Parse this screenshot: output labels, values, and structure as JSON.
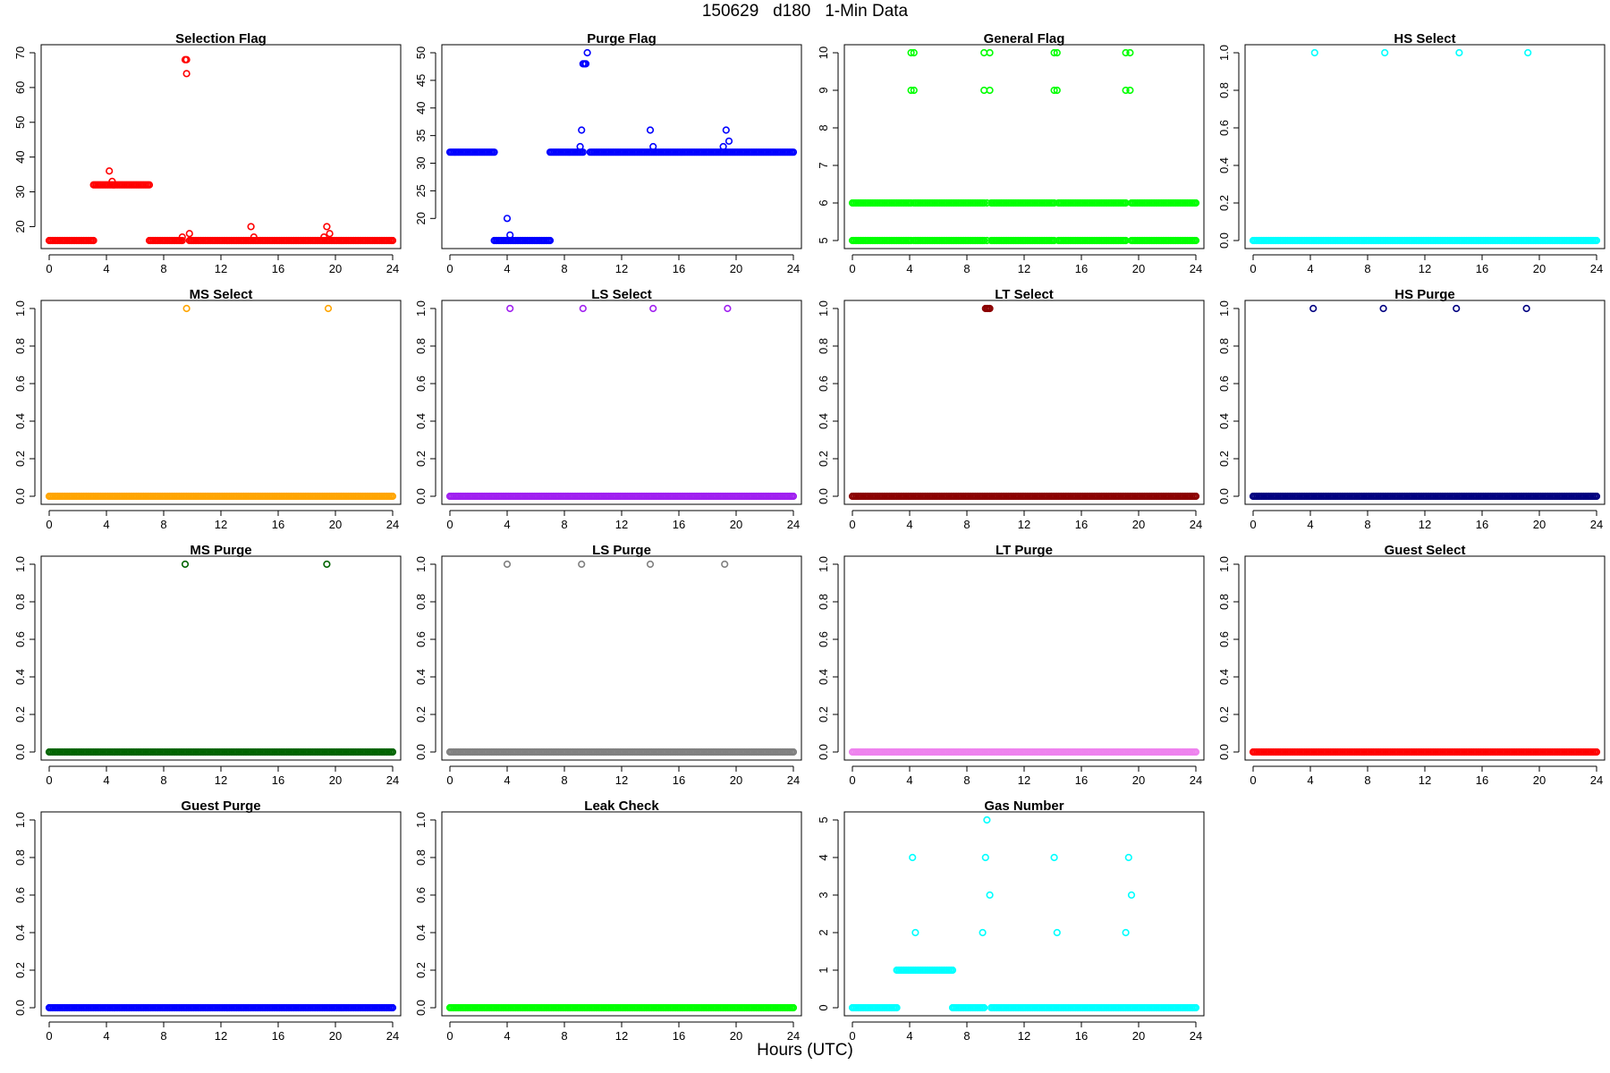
{
  "page": {
    "title": "150629   d180   1-Min Data",
    "xlabel": "Hours (UTC)"
  },
  "chart_data": [
    {
      "type": "scatter",
      "title": "Selection Flag",
      "color": "#ff0000",
      "xlim": [
        0,
        24
      ],
      "xticks": [
        0,
        4,
        8,
        12,
        16,
        20,
        24
      ],
      "ylim": [
        16,
        70
      ],
      "yticks": [
        20,
        30,
        40,
        50,
        60,
        70
      ],
      "segments": [
        {
          "x0": 0,
          "x1": 3.1,
          "y": 16
        },
        {
          "x0": 3.1,
          "x1": 7.0,
          "y": 32
        },
        {
          "x0": 7.0,
          "x1": 9.3,
          "y": 16
        },
        {
          "x0": 9.8,
          "x1": 24,
          "y": 16
        }
      ],
      "points": [
        [
          4.2,
          36
        ],
        [
          4.4,
          33
        ],
        [
          9.3,
          17
        ],
        [
          9.5,
          68
        ],
        [
          9.6,
          68
        ],
        [
          9.6,
          64
        ],
        [
          9.8,
          18
        ],
        [
          14.1,
          20
        ],
        [
          14.3,
          17
        ],
        [
          19.2,
          17
        ],
        [
          19.4,
          20
        ],
        [
          19.6,
          18
        ]
      ]
    },
    {
      "type": "scatter",
      "title": "Purge Flag",
      "color": "#0000ff",
      "xlim": [
        0,
        24
      ],
      "xticks": [
        0,
        4,
        8,
        12,
        16,
        20,
        24
      ],
      "ylim": [
        16,
        50
      ],
      "yticks": [
        15,
        20,
        25,
        30,
        35,
        40,
        45,
        50
      ],
      "segments": [
        {
          "x0": 0,
          "x1": 3.1,
          "y": 32
        },
        {
          "x0": 3.1,
          "x1": 7.0,
          "y": 16
        },
        {
          "x0": 7.0,
          "x1": 9.3,
          "y": 32
        },
        {
          "x0": 9.8,
          "x1": 24,
          "y": 32
        }
      ],
      "points": [
        [
          4.0,
          20
        ],
        [
          4.2,
          17
        ],
        [
          9.1,
          33
        ],
        [
          9.2,
          36
        ],
        [
          9.3,
          48
        ],
        [
          9.4,
          48
        ],
        [
          9.5,
          48
        ],
        [
          9.6,
          50
        ],
        [
          14.0,
          36
        ],
        [
          14.2,
          33
        ],
        [
          19.1,
          33
        ],
        [
          19.3,
          36
        ],
        [
          19.5,
          34
        ]
      ]
    },
    {
      "type": "scatter",
      "title": "General Flag",
      "color": "#00ff00",
      "xlim": [
        0,
        24
      ],
      "xticks": [
        0,
        4,
        8,
        12,
        16,
        20,
        24
      ],
      "ylim": [
        5,
        10
      ],
      "yticks": [
        5,
        6,
        7,
        8,
        9,
        10
      ],
      "segments": [
        {
          "x0": 0,
          "x1": 4.1,
          "y": 5
        },
        {
          "x0": 0,
          "x1": 4.1,
          "y": 6
        },
        {
          "x0": 4.3,
          "x1": 9.2,
          "y": 5
        },
        {
          "x0": 4.3,
          "x1": 9.2,
          "y": 6
        },
        {
          "x0": 9.7,
          "x1": 14.1,
          "y": 5
        },
        {
          "x0": 9.7,
          "x1": 14.1,
          "y": 6
        },
        {
          "x0": 14.4,
          "x1": 19.1,
          "y": 5
        },
        {
          "x0": 14.4,
          "x1": 19.1,
          "y": 6
        },
        {
          "x0": 19.5,
          "x1": 24,
          "y": 5
        },
        {
          "x0": 19.5,
          "x1": 24,
          "y": 6
        }
      ],
      "points": [
        [
          4.1,
          10
        ],
        [
          4.3,
          10
        ],
        [
          4.1,
          9
        ],
        [
          4.3,
          9
        ],
        [
          9.2,
          10
        ],
        [
          9.6,
          10
        ],
        [
          9.2,
          9
        ],
        [
          9.6,
          9
        ],
        [
          14.1,
          10
        ],
        [
          14.3,
          10
        ],
        [
          14.1,
          9
        ],
        [
          14.3,
          9
        ],
        [
          19.1,
          10
        ],
        [
          19.4,
          10
        ],
        [
          19.1,
          9
        ],
        [
          19.4,
          9
        ],
        [
          9.4,
          6
        ],
        [
          9.4,
          5
        ]
      ]
    },
    {
      "type": "scatter",
      "title": "HS Select",
      "color": "#00ffff",
      "xlim": [
        0,
        24
      ],
      "xticks": [
        0,
        4,
        8,
        12,
        16,
        20,
        24
      ],
      "ylim": [
        0,
        1
      ],
      "yticks": [
        0.0,
        0.2,
        0.4,
        0.6,
        0.8,
        1.0
      ],
      "segments": [
        {
          "x0": 0,
          "x1": 24,
          "y": 0
        }
      ],
      "points": [
        [
          4.3,
          1
        ],
        [
          9.2,
          1
        ],
        [
          14.4,
          1
        ],
        [
          19.2,
          1
        ]
      ]
    },
    {
      "type": "scatter",
      "title": "MS Select",
      "color": "#ffa500",
      "xlim": [
        0,
        24
      ],
      "xticks": [
        0,
        4,
        8,
        12,
        16,
        20,
        24
      ],
      "ylim": [
        0,
        1
      ],
      "yticks": [
        0.0,
        0.2,
        0.4,
        0.6,
        0.8,
        1.0
      ],
      "segments": [
        {
          "x0": 0,
          "x1": 24,
          "y": 0
        }
      ],
      "points": [
        [
          9.6,
          1
        ],
        [
          19.5,
          1
        ]
      ]
    },
    {
      "type": "scatter",
      "title": "LS Select",
      "color": "#a020f0",
      "xlim": [
        0,
        24
      ],
      "xticks": [
        0,
        4,
        8,
        12,
        16,
        20,
        24
      ],
      "ylim": [
        0,
        1
      ],
      "yticks": [
        0.0,
        0.2,
        0.4,
        0.6,
        0.8,
        1.0
      ],
      "segments": [
        {
          "x0": 0,
          "x1": 24,
          "y": 0
        }
      ],
      "points": [
        [
          4.2,
          1
        ],
        [
          9.3,
          1
        ],
        [
          14.2,
          1
        ],
        [
          19.4,
          1
        ]
      ]
    },
    {
      "type": "scatter",
      "title": "LT Select",
      "color": "#8b0000",
      "xlim": [
        0,
        24
      ],
      "xticks": [
        0,
        4,
        8,
        12,
        16,
        20,
        24
      ],
      "ylim": [
        0,
        1
      ],
      "yticks": [
        0.0,
        0.2,
        0.4,
        0.6,
        0.8,
        1.0
      ],
      "segments": [
        {
          "x0": 0,
          "x1": 24,
          "y": 0
        }
      ],
      "points": [
        [
          9.3,
          1
        ],
        [
          9.4,
          1
        ],
        [
          9.5,
          1
        ],
        [
          9.6,
          1
        ]
      ]
    },
    {
      "type": "scatter",
      "title": "HS Purge",
      "color": "#000080",
      "xlim": [
        0,
        24
      ],
      "xticks": [
        0,
        4,
        8,
        12,
        16,
        20,
        24
      ],
      "ylim": [
        0,
        1
      ],
      "yticks": [
        0.0,
        0.2,
        0.4,
        0.6,
        0.8,
        1.0
      ],
      "segments": [
        {
          "x0": 0,
          "x1": 24,
          "y": 0
        }
      ],
      "points": [
        [
          4.2,
          1
        ],
        [
          9.1,
          1
        ],
        [
          14.2,
          1
        ],
        [
          19.1,
          1
        ]
      ]
    },
    {
      "type": "scatter",
      "title": "MS Purge",
      "color": "#006400",
      "xlim": [
        0,
        24
      ],
      "xticks": [
        0,
        4,
        8,
        12,
        16,
        20,
        24
      ],
      "ylim": [
        0,
        1
      ],
      "yticks": [
        0.0,
        0.2,
        0.4,
        0.6,
        0.8,
        1.0
      ],
      "segments": [
        {
          "x0": 0,
          "x1": 24,
          "y": 0
        }
      ],
      "points": [
        [
          9.5,
          1
        ],
        [
          19.4,
          1
        ]
      ]
    },
    {
      "type": "scatter",
      "title": "LS Purge",
      "color": "#808080",
      "xlim": [
        0,
        24
      ],
      "xticks": [
        0,
        4,
        8,
        12,
        16,
        20,
        24
      ],
      "ylim": [
        0,
        1
      ],
      "yticks": [
        0.0,
        0.2,
        0.4,
        0.6,
        0.8,
        1.0
      ],
      "segments": [
        {
          "x0": 0,
          "x1": 24,
          "y": 0
        }
      ],
      "points": [
        [
          4.0,
          1
        ],
        [
          9.2,
          1
        ],
        [
          14.0,
          1
        ],
        [
          19.2,
          1
        ]
      ]
    },
    {
      "type": "scatter",
      "title": "LT Purge",
      "color": "#ee82ee",
      "xlim": [
        0,
        24
      ],
      "xticks": [
        0,
        4,
        8,
        12,
        16,
        20,
        24
      ],
      "ylim": [
        0,
        1
      ],
      "yticks": [
        0.0,
        0.2,
        0.4,
        0.6,
        0.8,
        1.0
      ],
      "segments": [
        {
          "x0": 0,
          "x1": 24,
          "y": 0
        }
      ],
      "points": []
    },
    {
      "type": "scatter",
      "title": "Guest Select",
      "color": "#ff0000",
      "xlim": [
        0,
        24
      ],
      "xticks": [
        0,
        4,
        8,
        12,
        16,
        20,
        24
      ],
      "ylim": [
        0,
        1
      ],
      "yticks": [
        0.0,
        0.2,
        0.4,
        0.6,
        0.8,
        1.0
      ],
      "segments": [
        {
          "x0": 0,
          "x1": 24,
          "y": 0
        }
      ],
      "points": []
    },
    {
      "type": "scatter",
      "title": "Guest Purge",
      "color": "#0000ff",
      "xlim": [
        0,
        24
      ],
      "xticks": [
        0,
        4,
        8,
        12,
        16,
        20,
        24
      ],
      "ylim": [
        0,
        1
      ],
      "yticks": [
        0.0,
        0.2,
        0.4,
        0.6,
        0.8,
        1.0
      ],
      "segments": [
        {
          "x0": 0,
          "x1": 24,
          "y": 0
        }
      ],
      "points": []
    },
    {
      "type": "scatter",
      "title": "Leak Check",
      "color": "#00ff00",
      "xlim": [
        0,
        24
      ],
      "xticks": [
        0,
        4,
        8,
        12,
        16,
        20,
        24
      ],
      "ylim": [
        0,
        1
      ],
      "yticks": [
        0.0,
        0.2,
        0.4,
        0.6,
        0.8,
        1.0
      ],
      "segments": [
        {
          "x0": 0,
          "x1": 24,
          "y": 0
        }
      ],
      "points": []
    },
    {
      "type": "scatter",
      "title": "Gas Number",
      "color": "#00ffff",
      "xlim": [
        0,
        24
      ],
      "xticks": [
        0,
        4,
        8,
        12,
        16,
        20,
        24
      ],
      "ylim": [
        0,
        5
      ],
      "yticks": [
        0,
        1,
        2,
        3,
        4,
        5
      ],
      "segments": [
        {
          "x0": 0,
          "x1": 3.1,
          "y": 0
        },
        {
          "x0": 3.1,
          "x1": 7.0,
          "y": 1
        },
        {
          "x0": 7.0,
          "x1": 9.2,
          "y": 0
        },
        {
          "x0": 9.7,
          "x1": 24,
          "y": 0
        }
      ],
      "points": [
        [
          4.2,
          4
        ],
        [
          4.4,
          2
        ],
        [
          9.1,
          2
        ],
        [
          9.3,
          4
        ],
        [
          9.4,
          5
        ],
        [
          9.6,
          3
        ],
        [
          14.1,
          4
        ],
        [
          14.3,
          2
        ],
        [
          19.1,
          2
        ],
        [
          19.3,
          4
        ],
        [
          19.5,
          3
        ]
      ]
    }
  ]
}
